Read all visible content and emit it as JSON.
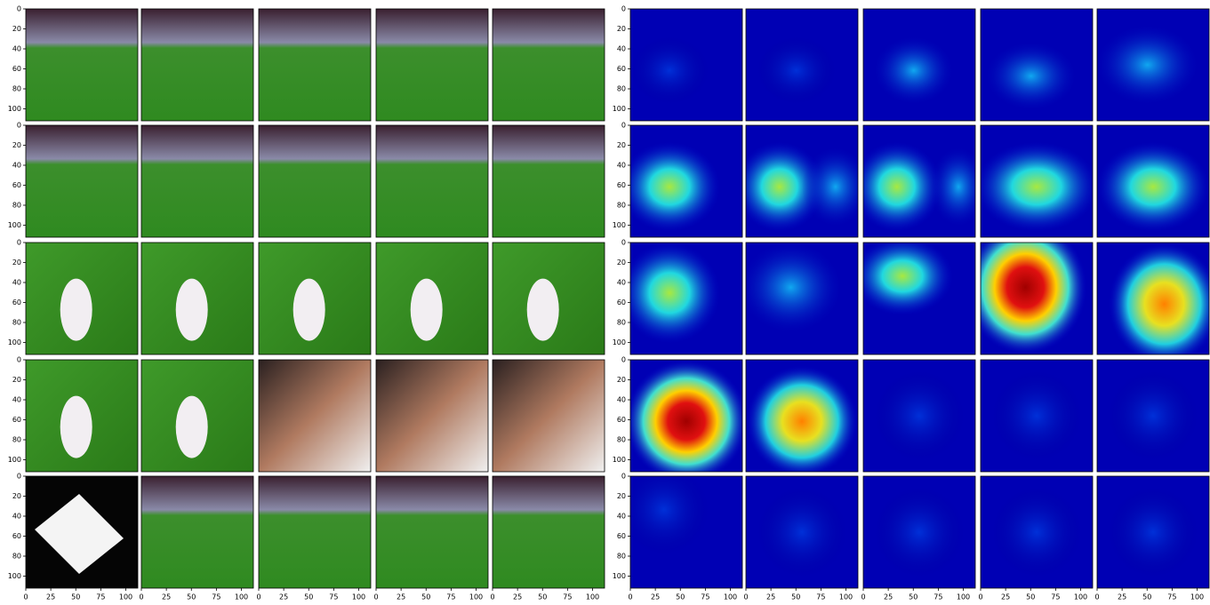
{
  "panels": {
    "xlim": [
      0,
      112
    ],
    "ylim": [
      0,
      112
    ],
    "xticks": [
      0,
      25,
      50,
      75,
      100
    ],
    "yticks": [
      0,
      20,
      40,
      60,
      80,
      100
    ]
  }
}
